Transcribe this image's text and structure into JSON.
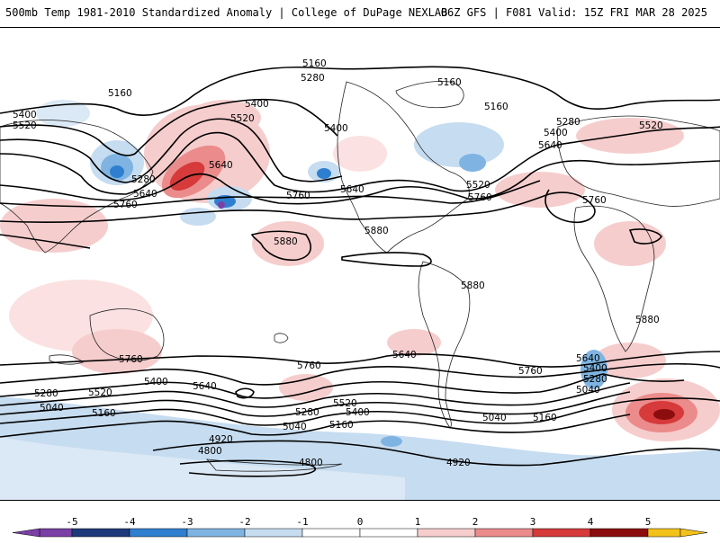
{
  "header": {
    "title": "500mb Temp 1981-2010 Standardized Anomaly | College of DuPage NEXLAB",
    "run_info": "06Z GFS | F081 Valid: 15Z FRI MAR 28 2025"
  },
  "contour_labels": [
    "5160",
    "5280",
    "5160",
    "5400",
    "5520",
    "5400",
    "5520",
    "5280",
    "5640",
    "5640",
    "5760",
    "5760",
    "5880",
    "5880",
    "5760",
    "5160",
    "5160",
    "5280",
    "5400",
    "5520",
    "5640",
    "5640",
    "5400",
    "5520",
    "5760",
    "5880",
    "5880",
    "5760",
    "5640",
    "5400",
    "5280",
    "5040",
    "5640",
    "5760",
    "5520",
    "5280",
    "5040",
    "5400",
    "5160",
    "5520",
    "5400",
    "5280",
    "5160",
    "5040",
    "5040",
    "5160",
    "4920",
    "4800",
    "4800",
    "4920",
    "5760",
    "5640"
  ],
  "legend": {
    "ticks": [
      "-5",
      "-4",
      "-3",
      "-2",
      "-1",
      "0",
      "1",
      "2",
      "3",
      "4",
      "5"
    ],
    "colors": [
      "#7b3fa6",
      "#1f3a7a",
      "#2f7fd0",
      "#7fb4e2",
      "#c6dcf0",
      "#ffffff",
      "#ffffff",
      "#f6cdcd",
      "#eb8b8b",
      "#d63a3a",
      "#8c0d0d",
      "#f2c21a"
    ]
  }
}
